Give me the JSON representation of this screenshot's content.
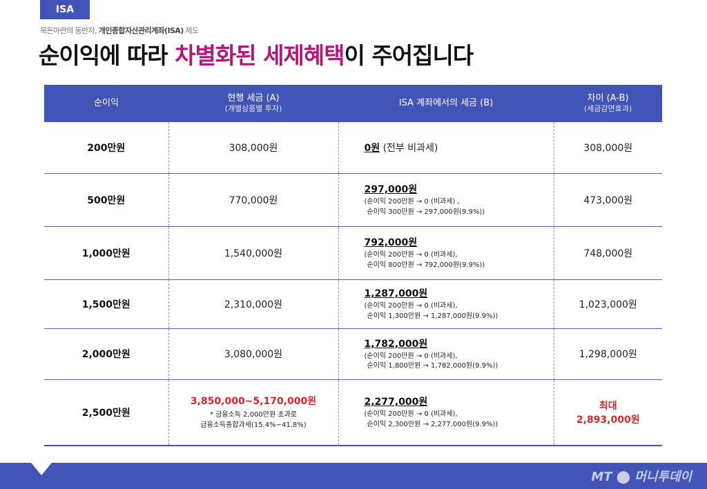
{
  "tag": "ISA",
  "subtitle_pre": "목돈마련의 동반자, ",
  "subtitle_bold": "개인종합자산관리계좌(ISA)",
  "subtitle_post": " 제도",
  "headline_1": "순이익에 따라 ",
  "headline_hl": "차별화된 세제혜택",
  "headline_2": "이 주어집니다",
  "table": {
    "headers": [
      {
        "title": "순이익",
        "sub": ""
      },
      {
        "title": "현행 세금 (A)",
        "sub": "(개별상품별 투자)"
      },
      {
        "title": "ISA 계좌에서의 세금 (B)",
        "sub": ""
      },
      {
        "title": "차이 (A-B)",
        "sub": "(세금감면효과)"
      }
    ],
    "rows": [
      {
        "profit": "200만원",
        "current": "308,000원",
        "isa_main": "0원",
        "isa_suffix": " (전부 비과세)",
        "isa_note1": "",
        "isa_note2": "",
        "diff": "308,000원"
      },
      {
        "profit": "500만원",
        "current": "770,000원",
        "isa_main": "297,000원",
        "isa_suffix": "",
        "isa_note1": "(순이익 200만원 → 0 (비과세) ,",
        "isa_note2": "순이익 300만원 → 297,000원(9.9%))",
        "diff": "473,000원"
      },
      {
        "profit": "1,000만원",
        "current": "1,540,000원",
        "isa_main": "792,000원",
        "isa_suffix": "",
        "isa_note1": "(순이익 200만원 → 0 (비과세),",
        "isa_note2": "순이익 800만원 → 792,000원(9.9%))",
        "diff": "748,000원"
      },
      {
        "profit": "1,500만원",
        "current": "2,310,000원",
        "isa_main": "1,287,000원",
        "isa_suffix": "",
        "isa_note1": "(순이익 200만원 → 0 (비과세),",
        "isa_note2": "순이익 1,300만원 → 1,287,000원(9.9%))",
        "diff": "1,023,000원"
      },
      {
        "profit": "2,000만원",
        "current": "3,080,000원",
        "isa_main": "1,782,000원",
        "isa_suffix": "",
        "isa_note1": "(순이익 200만원 → 0 (비과세),",
        "isa_note2": "순이익 1,800만원 → 1,782,000원(9.9%))",
        "diff": "1,298,000원"
      },
      {
        "profit": "2,500만원",
        "current_red": "3,850,000~5,170,000원",
        "current_note1": "* 금융소득 2,000만원 초과로",
        "current_note2": "금융소득종합과세(15.4%~41.8%)",
        "isa_main": "2,277,000원",
        "isa_suffix": "",
        "isa_note1": "(순이익 200만원 → 0 (비과세),",
        "isa_note2": "순이익 2,300만원 → 2,277,000원(9.9%))",
        "diff_red1": "최대",
        "diff_red2": "2,893,000원"
      }
    ]
  },
  "footer_logo": "MT ⬤ 머니투데이",
  "colors": {
    "accent": "#4354b8",
    "highlight": "#b5157b",
    "red": "#d9252b"
  }
}
